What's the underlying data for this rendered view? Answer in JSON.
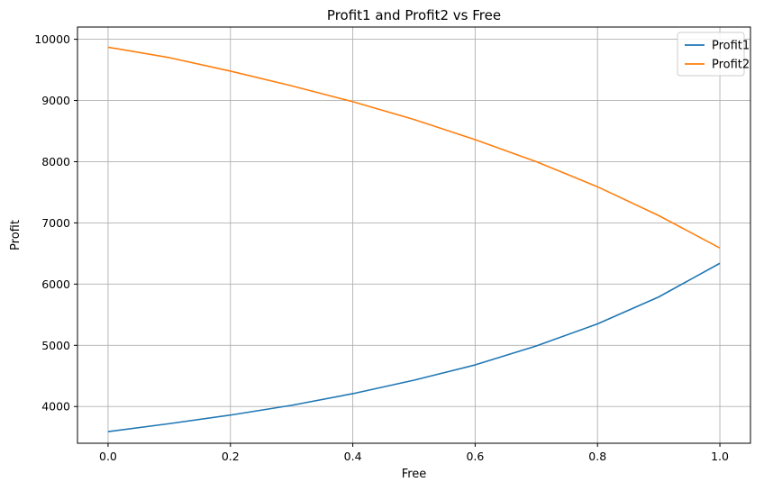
{
  "chart_data": {
    "type": "line",
    "title": "Profit1 and Profit2 vs Free",
    "xlabel": "Free",
    "ylabel": "Profit",
    "xlim": [
      -0.05,
      1.05
    ],
    "ylim": [
      3400,
      10200
    ],
    "xticks": [
      0.0,
      0.2,
      0.4,
      0.6,
      0.8,
      1.0
    ],
    "xtick_labels": [
      "0.0",
      "0.2",
      "0.4",
      "0.6",
      "0.8",
      "1.0"
    ],
    "yticks": [
      4000,
      5000,
      6000,
      7000,
      8000,
      9000,
      10000
    ],
    "ytick_labels": [
      "4000",
      "5000",
      "6000",
      "7000",
      "8000",
      "9000",
      "10000"
    ],
    "grid": true,
    "legend_position": "top-right",
    "x": [
      0.0,
      0.1,
      0.2,
      0.3,
      0.4,
      0.5,
      0.6,
      0.7,
      0.8,
      0.9,
      1.0
    ],
    "series": [
      {
        "name": "Profit1",
        "color": "#1f77b4",
        "values": [
          3590,
          3720,
          3860,
          4020,
          4210,
          4430,
          4680,
          4990,
          5350,
          5790,
          6340
        ]
      },
      {
        "name": "Profit2",
        "color": "#ff7f0e",
        "values": [
          9870,
          9700,
          9480,
          9240,
          8980,
          8690,
          8360,
          8000,
          7590,
          7120,
          6590
        ]
      }
    ]
  }
}
